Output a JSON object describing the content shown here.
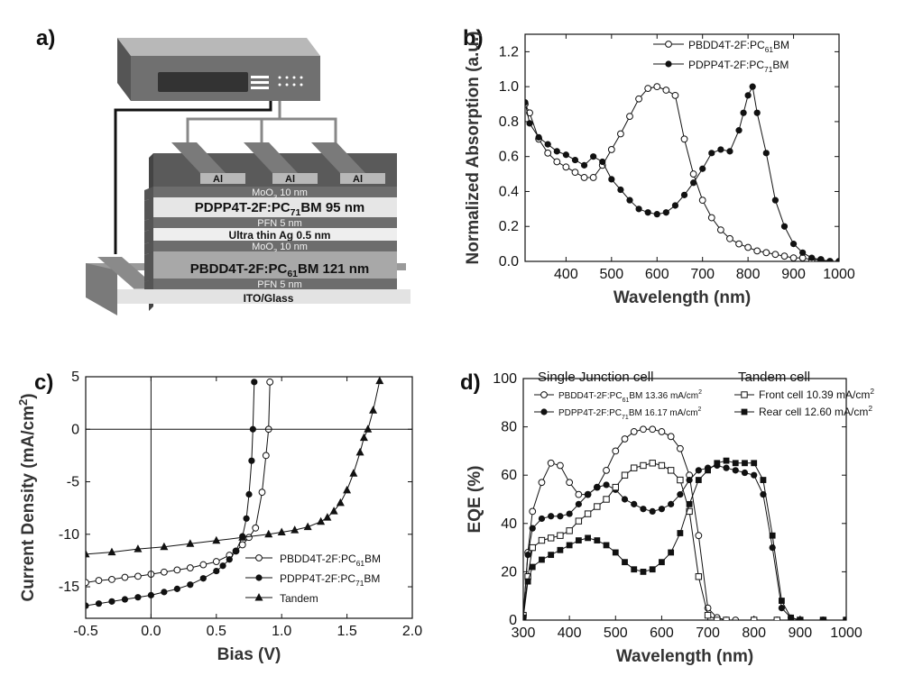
{
  "panel_labels": [
    "a)",
    "b)",
    "c)",
    "d)"
  ],
  "device": {
    "electrode_top": "Al",
    "electrode_bottom": "Al",
    "layers": [
      {
        "id": "moo3_top",
        "text": "MoO",
        "sub": "3",
        "rest": " 10 nm"
      },
      {
        "id": "active_top",
        "text": "PDPP4T-2F:PC",
        "sub": "71",
        "rest": "BM 95 nm"
      },
      {
        "id": "pfn_top",
        "text": "PFN 5 nm",
        "sub": "",
        "rest": ""
      },
      {
        "id": "ag",
        "text": "Ultra thin Ag 0.5 nm",
        "sub": "",
        "rest": ""
      },
      {
        "id": "moo3_mid",
        "text": "MoO",
        "sub": "3",
        "rest": " 10 nm"
      },
      {
        "id": "active_bottom",
        "text": "PBDD4T-2F:PC",
        "sub": "61",
        "rest": "BM 121 nm"
      },
      {
        "id": "pfn_bottom",
        "text": "PFN 5 nm",
        "sub": "",
        "rest": ""
      },
      {
        "id": "ito",
        "text": "ITO/Glass",
        "sub": "",
        "rest": ""
      }
    ]
  },
  "chart_data": [
    {
      "panel": "b)",
      "type": "line",
      "xlabel": "Wavelength (nm)",
      "ylabel": "Normalized Absorption (a.u.)",
      "xlim": [
        310,
        1000
      ],
      "ylim": [
        0.0,
        1.3
      ],
      "xticks": [
        400,
        500,
        600,
        700,
        800,
        900,
        1000
      ],
      "yticks": [
        "0.0",
        "0.2",
        "0.4",
        "0.6",
        "0.8",
        "1.0",
        "1.2"
      ],
      "grid": false,
      "legend": "top-right",
      "series": [
        {
          "name": "PBDD4T-2F:PC",
          "sub": "61",
          "suffix": "BM",
          "marker": "open-circle",
          "x": [
            310,
            320,
            340,
            360,
            380,
            400,
            420,
            440,
            460,
            480,
            500,
            520,
            540,
            560,
            580,
            600,
            620,
            640,
            660,
            680,
            700,
            720,
            740,
            760,
            780,
            800,
            820,
            840,
            860,
            880,
            900,
            920,
            940,
            960,
            980,
            1000
          ],
          "y": [
            0.9,
            0.85,
            0.7,
            0.62,
            0.57,
            0.54,
            0.51,
            0.48,
            0.48,
            0.55,
            0.64,
            0.73,
            0.83,
            0.93,
            0.99,
            1.0,
            0.98,
            0.95,
            0.7,
            0.5,
            0.35,
            0.25,
            0.18,
            0.13,
            0.1,
            0.08,
            0.06,
            0.05,
            0.04,
            0.03,
            0.02,
            0.02,
            0.01,
            0.01,
            0.0,
            0.0
          ]
        },
        {
          "name": "PDPP4T-2F:PC",
          "sub": "71",
          "suffix": "BM",
          "marker": "filled-circle",
          "x": [
            310,
            320,
            340,
            360,
            380,
            400,
            420,
            440,
            460,
            480,
            500,
            520,
            540,
            560,
            580,
            600,
            620,
            640,
            660,
            680,
            700,
            720,
            740,
            760,
            780,
            790,
            800,
            810,
            820,
            840,
            860,
            880,
            900,
            920,
            940,
            960,
            980,
            1000
          ],
          "y": [
            0.91,
            0.79,
            0.71,
            0.67,
            0.63,
            0.61,
            0.58,
            0.55,
            0.6,
            0.57,
            0.47,
            0.41,
            0.35,
            0.3,
            0.28,
            0.27,
            0.28,
            0.32,
            0.38,
            0.45,
            0.53,
            0.62,
            0.64,
            0.63,
            0.75,
            0.85,
            0.95,
            1.0,
            0.85,
            0.62,
            0.35,
            0.2,
            0.1,
            0.05,
            0.02,
            0.01,
            0.0,
            0.0
          ]
        }
      ]
    },
    {
      "panel": "c)",
      "type": "line",
      "xlabel": "Bias (V)",
      "ylabel": "Current Density (mA/cm",
      "ylabel_sup": "2",
      "ylabel_end": ")",
      "xlim": [
        -0.5,
        2.0
      ],
      "ylim": [
        -18,
        5
      ],
      "xticks": [
        "-0.5",
        "0.0",
        "0.5",
        "1.0",
        "1.5",
        "2.0"
      ],
      "yticks": [
        "-15",
        "-10",
        "-5",
        "0",
        "5"
      ],
      "grid": false,
      "legend": "lower-right",
      "series": [
        {
          "name": "PBDD4T-2F:PC",
          "sub": "61",
          "suffix": "BM",
          "marker": "open-circle",
          "x": [
            -0.5,
            -0.4,
            -0.3,
            -0.2,
            -0.1,
            0.0,
            0.1,
            0.2,
            0.3,
            0.4,
            0.5,
            0.6,
            0.65,
            0.7,
            0.75,
            0.8,
            0.85,
            0.88,
            0.9,
            0.91
          ],
          "y": [
            -14.6,
            -14.4,
            -14.3,
            -14.1,
            -14.0,
            -13.8,
            -13.6,
            -13.4,
            -13.2,
            -12.9,
            -12.6,
            -12.0,
            -11.6,
            -11.0,
            -10.3,
            -9.4,
            -6.0,
            -2.5,
            0.0,
            4.5
          ]
        },
        {
          "name": "PDPP4T-2F:PC",
          "sub": "71",
          "suffix": "BM",
          "marker": "filled-circle",
          "x": [
            -0.5,
            -0.4,
            -0.3,
            -0.2,
            -0.1,
            0.0,
            0.1,
            0.2,
            0.3,
            0.4,
            0.5,
            0.55,
            0.6,
            0.65,
            0.7,
            0.73,
            0.75,
            0.77,
            0.78,
            0.79
          ],
          "y": [
            -16.8,
            -16.6,
            -16.4,
            -16.2,
            -16.0,
            -15.8,
            -15.5,
            -15.2,
            -14.8,
            -14.2,
            -13.5,
            -13.0,
            -12.4,
            -11.6,
            -10.2,
            -8.5,
            -6.2,
            -3.0,
            0.0,
            4.5
          ]
        },
        {
          "name": "Tandem",
          "sub": "",
          "suffix": "",
          "marker": "filled-triangle",
          "x": [
            -0.5,
            -0.3,
            -0.1,
            0.1,
            0.3,
            0.5,
            0.7,
            0.9,
            1.0,
            1.1,
            1.2,
            1.3,
            1.35,
            1.4,
            1.45,
            1.5,
            1.55,
            1.6,
            1.63,
            1.66,
            1.7,
            1.75
          ],
          "y": [
            -11.9,
            -11.7,
            -11.4,
            -11.2,
            -10.9,
            -10.6,
            -10.3,
            -10.0,
            -9.8,
            -9.6,
            -9.3,
            -8.8,
            -8.4,
            -7.8,
            -7.0,
            -5.8,
            -4.2,
            -2.2,
            -0.8,
            0.0,
            1.8,
            4.6
          ]
        }
      ]
    },
    {
      "panel": "d)",
      "type": "line",
      "xlabel": "Wavelength (nm)",
      "ylabel": "EQE (%)",
      "xlim": [
        300,
        1000
      ],
      "ylim": [
        0,
        100
      ],
      "xticks": [
        300,
        400,
        500,
        600,
        700,
        800,
        900,
        1000
      ],
      "yticks": [
        0,
        20,
        40,
        60,
        80,
        100
      ],
      "grid": false,
      "legend_groups": {
        "single_title": "Single Junction cell",
        "tandem_title": "Tandem cell"
      },
      "series": [
        {
          "name": "PBDD4T-2F:PC",
          "sub": "61",
          "suffix": "BM 13.36 mA/cm",
          "sup": "2",
          "marker": "open-circle",
          "group": "single",
          "x": [
            300,
            310,
            320,
            340,
            360,
            380,
            400,
            420,
            440,
            460,
            480,
            500,
            520,
            540,
            560,
            580,
            600,
            620,
            640,
            660,
            680,
            700,
            720,
            740,
            760,
            800,
            850,
            900,
            950,
            1000
          ],
          "y": [
            2,
            28,
            45,
            57,
            65,
            64,
            57,
            52,
            52,
            55,
            62,
            70,
            75,
            78,
            79,
            79,
            78,
            76,
            71,
            60,
            35,
            5,
            1,
            0,
            0,
            0,
            0,
            0,
            0,
            0
          ]
        },
        {
          "name": "PDPP4T-2F:PC",
          "sub": "71",
          "suffix": "BM 16.17 mA/cm",
          "sup": "2",
          "marker": "filled-circle",
          "group": "single",
          "x": [
            300,
            310,
            320,
            340,
            360,
            380,
            400,
            420,
            440,
            460,
            480,
            500,
            520,
            540,
            560,
            580,
            600,
            620,
            640,
            660,
            680,
            700,
            720,
            740,
            760,
            780,
            800,
            820,
            840,
            860,
            880,
            900,
            950,
            1000
          ],
          "y": [
            2,
            27,
            38,
            42,
            43,
            43,
            44,
            48,
            52,
            55,
            56,
            54,
            50,
            48,
            46,
            45,
            46,
            48,
            52,
            58,
            62,
            63,
            64,
            63,
            62,
            61,
            60,
            52,
            30,
            5,
            1,
            0,
            0,
            0
          ]
        },
        {
          "name": "Front cell  10.39 mA/cm",
          "sub": "",
          "suffix": "",
          "sup": "2",
          "marker": "open-square",
          "group": "tandem",
          "x": [
            300,
            310,
            320,
            340,
            360,
            380,
            400,
            420,
            440,
            460,
            480,
            500,
            520,
            540,
            560,
            580,
            600,
            620,
            640,
            660,
            680,
            700,
            720,
            740,
            800,
            850,
            900,
            950,
            1000
          ],
          "y": [
            2,
            18,
            30,
            33,
            34,
            35,
            37,
            41,
            44,
            47,
            50,
            55,
            60,
            63,
            64,
            65,
            64,
            62,
            58,
            45,
            18,
            2,
            0,
            0,
            0,
            0,
            0,
            0,
            0
          ]
        },
        {
          "name": "Rear cell   12.60 mA/cm",
          "sub": "",
          "suffix": "",
          "sup": "2",
          "marker": "filled-square",
          "group": "tandem",
          "x": [
            300,
            310,
            320,
            340,
            360,
            380,
            400,
            420,
            440,
            460,
            480,
            500,
            520,
            540,
            560,
            580,
            600,
            620,
            640,
            660,
            680,
            700,
            720,
            740,
            760,
            780,
            800,
            820,
            840,
            860,
            880,
            900,
            950,
            1000
          ],
          "y": [
            1,
            16,
            22,
            25,
            27,
            29,
            31,
            33,
            34,
            33,
            31,
            28,
            24,
            21,
            20,
            21,
            24,
            28,
            36,
            48,
            58,
            62,
            65,
            66,
            65,
            65,
            65,
            58,
            35,
            8,
            1,
            0,
            0,
            0
          ]
        }
      ]
    }
  ]
}
